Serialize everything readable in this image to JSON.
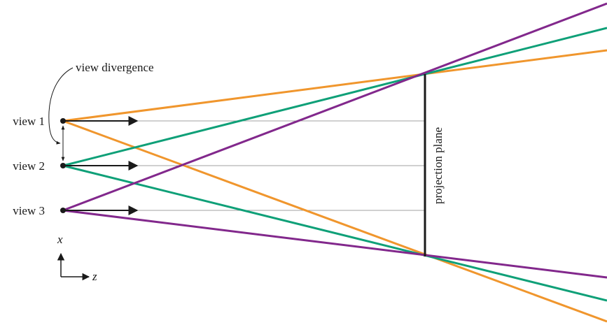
{
  "labels": {
    "view_divergence": "view divergence",
    "view1": "view 1",
    "view2": "view 2",
    "view3": "view 3",
    "projection_plane": "projection plane",
    "axis_x": "x",
    "axis_z": "z"
  },
  "colors": {
    "orange": "#f0962d",
    "green": "#0fa078",
    "purple": "#82288c",
    "guide_gray": "#a0a0a0",
    "ink": "#1a1a1a"
  }
}
